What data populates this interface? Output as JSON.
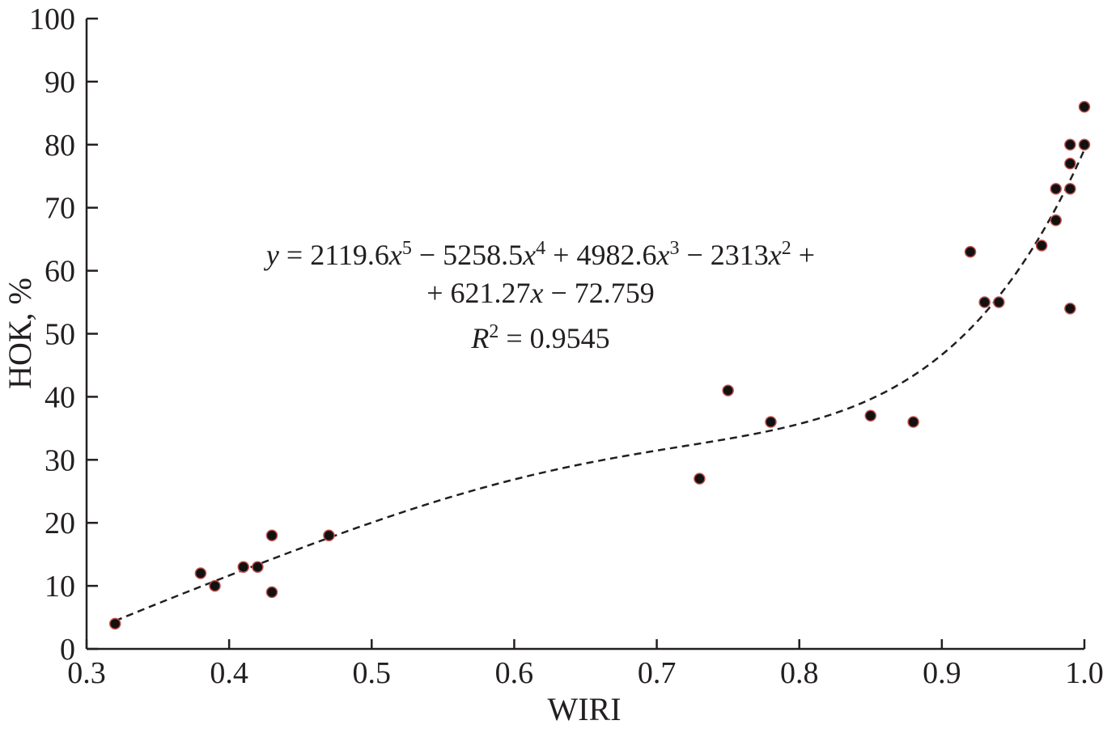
{
  "chart_data": {
    "type": "scatter",
    "xlabel": "WIRI",
    "ylabel": "НОК, %",
    "xlim": [
      0.3,
      1.0
    ],
    "ylim": [
      0,
      100
    ],
    "x_ticks": [
      "0.3",
      "0.4",
      "0.5",
      "0.6",
      "0.7",
      "0.8",
      "0.9",
      "1.0"
    ],
    "y_ticks": [
      "0",
      "10",
      "20",
      "30",
      "40",
      "50",
      "60",
      "70",
      "80",
      "90",
      "100"
    ],
    "grid": false,
    "series": [
      {
        "points": [
          [
            0.32,
            4
          ],
          [
            0.38,
            12
          ],
          [
            0.39,
            10
          ],
          [
            0.41,
            13
          ],
          [
            0.42,
            13
          ],
          [
            0.43,
            18
          ],
          [
            0.43,
            9
          ],
          [
            0.47,
            18
          ],
          [
            0.73,
            27
          ],
          [
            0.75,
            41
          ],
          [
            0.78,
            36
          ],
          [
            0.85,
            37
          ],
          [
            0.88,
            36
          ],
          [
            0.92,
            63
          ],
          [
            0.93,
            55
          ],
          [
            0.94,
            55
          ],
          [
            0.97,
            64
          ],
          [
            0.98,
            73
          ],
          [
            0.98,
            68
          ],
          [
            0.99,
            80
          ],
          [
            0.99,
            77
          ],
          [
            0.99,
            73
          ],
          [
            0.99,
            54
          ],
          [
            1.0,
            86
          ],
          [
            1.0,
            80
          ]
        ],
        "color": "#111111"
      }
    ],
    "trendline": {
      "type": "polynomial",
      "order": 5,
      "coefficients": [
        2119.6,
        -5258.5,
        4982.6,
        -2313,
        621.27,
        -72.759
      ],
      "style": "dashed",
      "x_range": [
        0.32,
        1.0
      ]
    },
    "annotation": {
      "line1": {
        "y": "y",
        "eq": " = 2119.6",
        "x1": "x",
        "p5": "5",
        "t2": " − 5258.5",
        "x2": "x",
        "p4": "4",
        "t3": " + 4982.6",
        "x3": "x",
        "p3": "3",
        "t4": " − 2313",
        "x4": "x",
        "p2": "2",
        "t5": " +"
      },
      "line2": {
        "t1": "+ 621.27",
        "x": "x",
        "t2": " − 72.759"
      },
      "line3": {
        "r": "R",
        "sup": "2",
        "t": " = 0.9545"
      }
    }
  }
}
